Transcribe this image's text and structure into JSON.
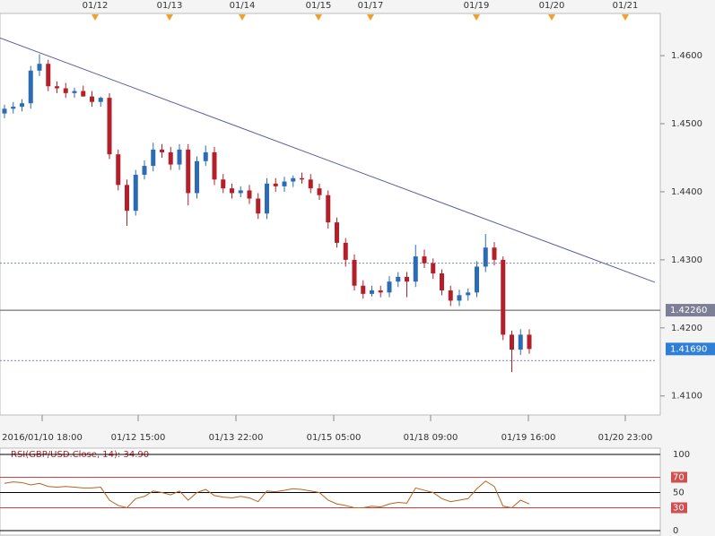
{
  "chart_data": [
    {
      "type": "candlestick",
      "event_dates": [
        "01/12",
        "01/13",
        "01/14",
        "01/15",
        "01/17",
        "01/19",
        "01/20",
        "01/21"
      ],
      "x_labels": [
        "2016/01/10 18:00",
        "01/12 15:00",
        "01/13 22:00",
        "01/15 05:00",
        "01/18 09:00",
        "01/19 16:00",
        "01/20 23:00"
      ],
      "ylim": [
        1.4072,
        1.4662
      ],
      "yticks": [
        {
          "value": 1.41,
          "label": "1.4100"
        },
        {
          "value": 1.42,
          "label": "1.4200"
        },
        {
          "value": 1.43,
          "label": "1.4300"
        },
        {
          "value": 1.44,
          "label": "1.4400"
        },
        {
          "value": 1.45,
          "label": "1.4500"
        },
        {
          "value": 1.46,
          "label": "1.4600"
        }
      ],
      "up_color": "#2b6cb4",
      "down_color": "#b3202a",
      "open": [
        1.4515,
        1.4522,
        1.4525,
        1.453,
        1.4578,
        1.4588,
        1.4555,
        1.4552,
        1.4545,
        1.4548,
        1.454,
        1.4532,
        1.4538,
        1.4455,
        1.441,
        1.4372,
        1.4425,
        1.4438,
        1.4462,
        1.4458,
        1.444,
        1.4462,
        1.4398,
        1.4445,
        1.4458,
        1.4418,
        1.4405,
        1.4398,
        1.4402,
        1.439,
        1.4368,
        1.4412,
        1.4408,
        1.4415,
        1.442,
        1.4418,
        1.4405,
        1.4395,
        1.4355,
        1.4325,
        1.43,
        1.4262,
        1.425,
        1.4255,
        1.4252,
        1.4268,
        1.4275,
        1.4268,
        1.4305,
        1.4295,
        1.428,
        1.4255,
        1.424,
        1.4248,
        1.4252,
        1.429,
        1.4318,
        1.43,
        1.419,
        1.4168,
        1.419
      ],
      "high": [
        1.4528,
        1.4532,
        1.4536,
        1.4585,
        1.4602,
        1.4594,
        1.4562,
        1.456,
        1.4553,
        1.4556,
        1.4548,
        1.454,
        1.4545,
        1.4462,
        1.4418,
        1.4432,
        1.4446,
        1.4472,
        1.447,
        1.4466,
        1.447,
        1.447,
        1.4452,
        1.4468,
        1.4466,
        1.4426,
        1.4412,
        1.4408,
        1.441,
        1.4398,
        1.442,
        1.442,
        1.4422,
        1.4424,
        1.4428,
        1.4426,
        1.4412,
        1.4402,
        1.4362,
        1.4332,
        1.4308,
        1.427,
        1.4262,
        1.4262,
        1.4276,
        1.4282,
        1.4282,
        1.4322,
        1.4315,
        1.4302,
        1.4286,
        1.4262,
        1.4256,
        1.4258,
        1.4298,
        1.4338,
        1.4326,
        1.4305,
        1.4196,
        1.4198,
        1.4198
      ],
      "low": [
        1.4508,
        1.4515,
        1.4518,
        1.4522,
        1.457,
        1.4548,
        1.4545,
        1.4538,
        1.4538,
        1.454,
        1.4525,
        1.4525,
        1.4448,
        1.4402,
        1.435,
        1.4365,
        1.4418,
        1.443,
        1.445,
        1.4432,
        1.4432,
        1.438,
        1.439,
        1.4438,
        1.441,
        1.4398,
        1.439,
        1.4392,
        1.4382,
        1.436,
        1.436,
        1.44,
        1.44,
        1.4407,
        1.4412,
        1.4398,
        1.4388,
        1.4346,
        1.4318,
        1.429,
        1.4255,
        1.4243,
        1.4246,
        1.4245,
        1.4245,
        1.426,
        1.4245,
        1.426,
        1.4288,
        1.4272,
        1.4248,
        1.4232,
        1.4232,
        1.424,
        1.4245,
        1.4282,
        1.4292,
        1.4182,
        1.4135,
        1.416,
        1.4162
      ],
      "close": [
        1.4522,
        1.4525,
        1.453,
        1.4578,
        1.4588,
        1.4555,
        1.4552,
        1.4545,
        1.4548,
        1.454,
        1.4532,
        1.4538,
        1.4455,
        1.441,
        1.4372,
        1.4425,
        1.4438,
        1.4462,
        1.4458,
        1.444,
        1.4462,
        1.4398,
        1.4445,
        1.4458,
        1.4418,
        1.4405,
        1.4398,
        1.4402,
        1.439,
        1.4368,
        1.4412,
        1.4408,
        1.4415,
        1.442,
        1.4418,
        1.4405,
        1.4395,
        1.4355,
        1.4325,
        1.43,
        1.4262,
        1.425,
        1.4255,
        1.4252,
        1.4268,
        1.4275,
        1.4268,
        1.4305,
        1.4295,
        1.428,
        1.4255,
        1.424,
        1.4248,
        1.4252,
        1.429,
        1.4318,
        1.43,
        1.419,
        1.4168,
        1.419,
        1.4169
      ],
      "trendline": [
        1.4626,
        1.4267
      ],
      "levels": [
        1.4295,
        1.4152
      ],
      "price_labels": [
        {
          "value": 1.4226,
          "label": "1.42260",
          "color": "#7c7f95"
        },
        {
          "value": 1.4169,
          "label": "1.41690",
          "color": "#2f7fd6"
        }
      ]
    },
    {
      "type": "line",
      "title": "RSI(GBP/USD.Close, 14): 34.90",
      "color": "#b5641e",
      "ylim": [
        0,
        100
      ],
      "yticks": [
        0,
        30,
        50,
        70,
        100
      ],
      "values": [
        62,
        64,
        63,
        60,
        62,
        58,
        57,
        58,
        57,
        56,
        56,
        57,
        40,
        33,
        30,
        42,
        45,
        52,
        50,
        47,
        52,
        40,
        50,
        54,
        46,
        44,
        43,
        45,
        43,
        38,
        52,
        51,
        53,
        55,
        54,
        52,
        50,
        40,
        35,
        33,
        30,
        30,
        32,
        31,
        35,
        37,
        36,
        56,
        53,
        50,
        42,
        38,
        40,
        42,
        55,
        65,
        58,
        32,
        30,
        40,
        34.9
      ]
    }
  ]
}
